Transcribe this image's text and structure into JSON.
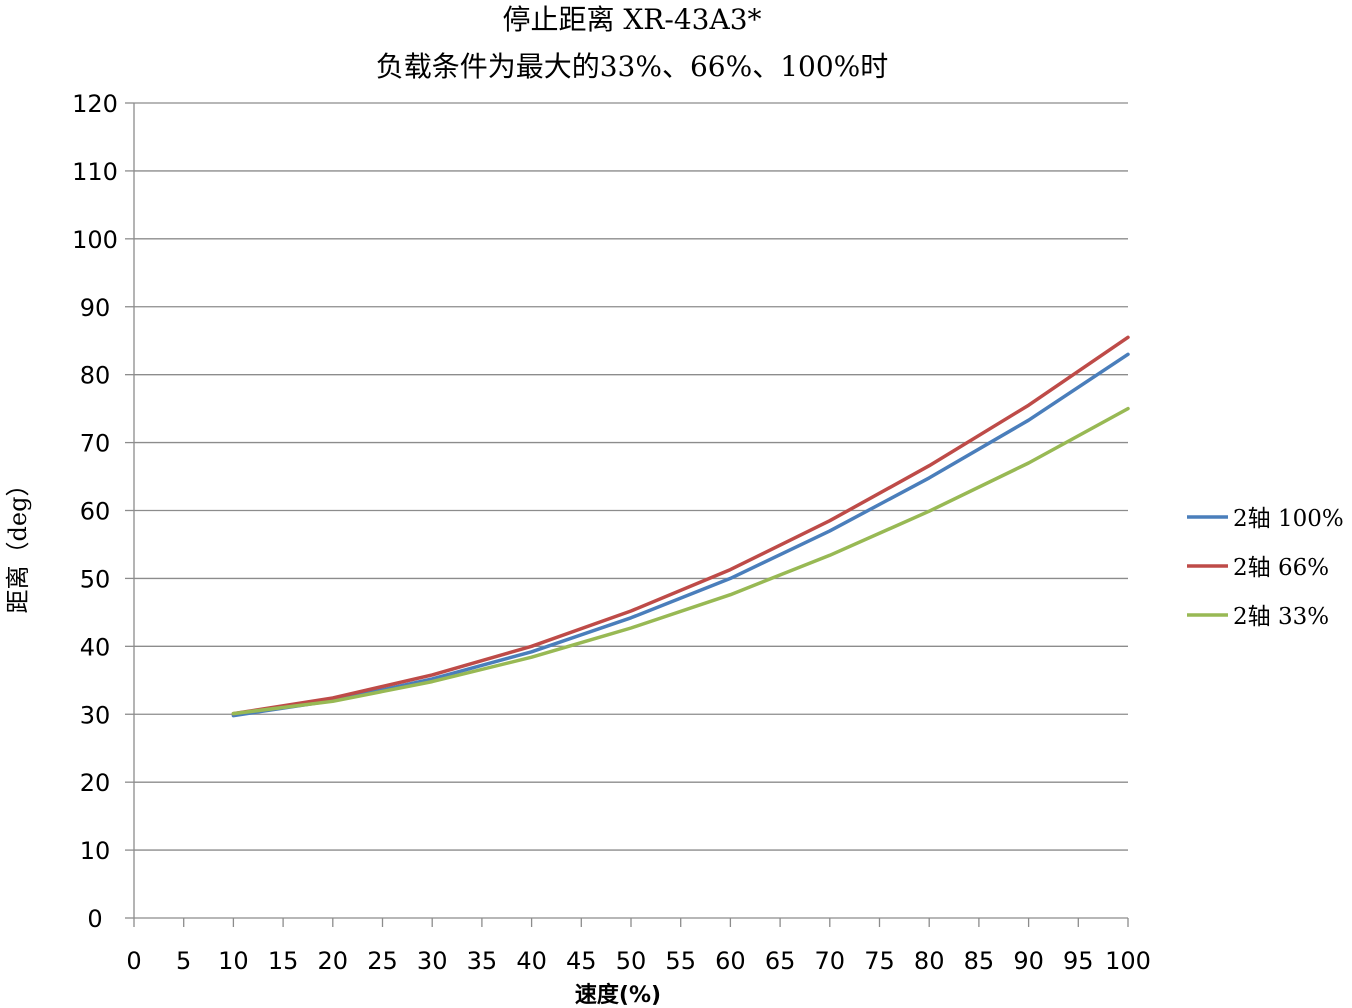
{
  "chart_data": {
    "type": "line",
    "title": "停止距离 XR-43A3*",
    "subtitle": "负载条件为最大的33%、66%、100%时",
    "xlabel": "速度(%)",
    "ylabel": "距离（deg）",
    "xlim": [
      0,
      100
    ],
    "ylim": [
      0,
      120
    ],
    "x_ticks": [
      "0",
      "5",
      "10",
      "15",
      "20",
      "25",
      "30",
      "35",
      "40",
      "45",
      "50",
      "55",
      "60",
      "65",
      "70",
      "75",
      "80",
      "85",
      "90",
      "95",
      "100"
    ],
    "y_ticks": [
      "0",
      "10",
      "20",
      "30",
      "40",
      "50",
      "60",
      "70",
      "80",
      "90",
      "100",
      "110",
      "120"
    ],
    "grid": "horizontal",
    "legend_position": "right",
    "x": [
      10,
      20,
      30,
      40,
      50,
      60,
      70,
      80,
      90,
      100
    ],
    "series": [
      {
        "name": "2轴 100%",
        "color": "#4a7ebb",
        "values": [
          29.8,
          32.0,
          35.2,
          39.2,
          44.2,
          50.0,
          57.0,
          64.8,
          73.3,
          83.0
        ]
      },
      {
        "name": "2轴 66%",
        "color": "#be4b48",
        "values": [
          30.1,
          32.4,
          35.8,
          40.0,
          45.2,
          51.3,
          58.5,
          66.6,
          75.5,
          85.5
        ]
      },
      {
        "name": "2轴 33%",
        "color": "#98b954",
        "values": [
          30.1,
          31.9,
          34.8,
          38.4,
          42.7,
          47.6,
          53.4,
          59.9,
          67.0,
          75.0
        ]
      }
    ]
  }
}
